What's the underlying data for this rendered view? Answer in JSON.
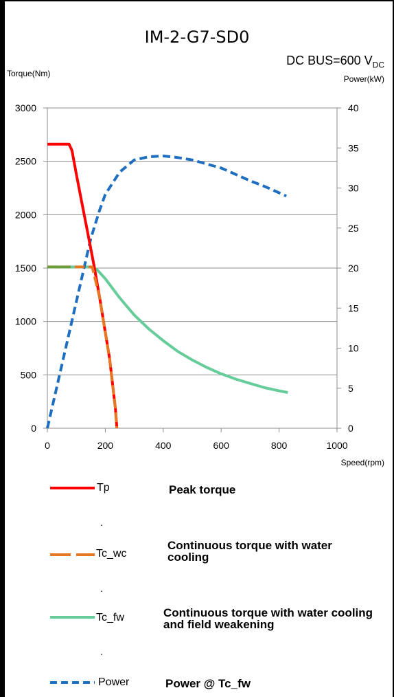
{
  "title": "IM-2-G7-SD0",
  "subtitle": {
    "prefix": "DC BUS=600 V",
    "subscript": "DC"
  },
  "chart_data": {
    "type": "line",
    "xlabel": "Speed(rpm)",
    "ylabel_left": "Torque(Nm)",
    "ylabel_right": "Power(kW)",
    "xlim": [
      0,
      1000
    ],
    "ylim_left": [
      0,
      3000
    ],
    "ylim_right": [
      0,
      40
    ],
    "xticks": [
      0,
      200,
      400,
      600,
      800,
      1000
    ],
    "yticks_left": [
      0,
      500,
      1000,
      1500,
      2000,
      2500,
      3000
    ],
    "yticks_right": [
      0,
      5,
      10,
      15,
      20,
      25,
      30,
      35,
      40
    ],
    "grid": true,
    "series": [
      {
        "name": "Tp",
        "axis": "left",
        "color": "#ff0000",
        "style": "solid",
        "x": [
          0,
          75,
          85,
          100,
          120,
          140,
          160,
          180,
          200,
          215,
          225,
          235,
          240
        ],
        "y": [
          2660,
          2660,
          2600,
          2380,
          2100,
          1820,
          1540,
          1230,
          900,
          650,
          420,
          180,
          0
        ]
      },
      {
        "name": "Tc_wc",
        "axis": "left",
        "color": "#e87722",
        "style": "dashed",
        "x": [
          0,
          155,
          165,
          180,
          200,
          215,
          225,
          235,
          240
        ],
        "y": [
          1510,
          1510,
          1400,
          1230,
          900,
          650,
          420,
          180,
          0
        ]
      },
      {
        "name": "Tc_fw",
        "axis": "left",
        "color": "#66cc99",
        "style": "solid",
        "x": [
          0,
          150,
          170,
          200,
          250,
          300,
          350,
          400,
          450,
          500,
          550,
          600,
          650,
          700,
          750,
          800,
          830
        ],
        "y": [
          1510,
          1510,
          1490,
          1400,
          1220,
          1060,
          930,
          820,
          720,
          640,
          570,
          510,
          460,
          420,
          380,
          350,
          335
        ]
      },
      {
        "name": "Power",
        "axis": "right",
        "color": "#1f6fc0",
        "style": "dashed",
        "x": [
          0,
          50,
          100,
          150,
          180,
          200,
          250,
          300,
          350,
          400,
          450,
          500,
          550,
          600,
          650,
          700,
          750,
          800,
          825
        ],
        "y": [
          0,
          7.9,
          15.8,
          23.7,
          27.2,
          29.2,
          32.0,
          33.5,
          33.9,
          34.0,
          33.8,
          33.5,
          33.0,
          32.5,
          31.7,
          30.9,
          30.2,
          29.4,
          29.0
        ]
      }
    ]
  },
  "legend": [
    {
      "name": "Tp",
      "desc": "Peak torque",
      "color": "#ff0000",
      "style": "solid"
    },
    {
      "name": "Tc_wc",
      "desc": "Continuous torque with water cooling",
      "color": "#e87722",
      "style": "dashed"
    },
    {
      "name": "Tc_fw",
      "desc": "Continuous torque with water cooling and field weakening",
      "color": "#66cc99",
      "style": "solid"
    },
    {
      "name": "Power",
      "desc": "Power @ Tc_fw",
      "color": "#1f6fc0",
      "style": "dashed"
    }
  ],
  "separator": "."
}
